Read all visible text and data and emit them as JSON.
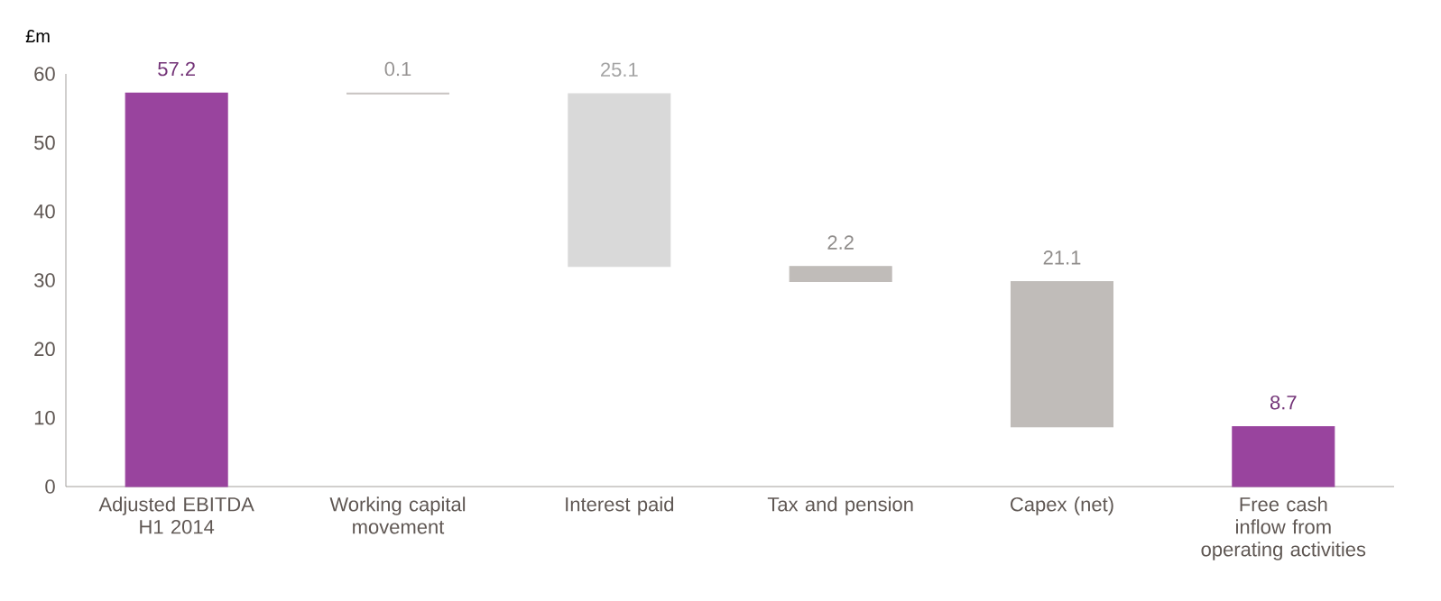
{
  "chart_data": {
    "type": "bar",
    "ylabel": "£m",
    "categories": [
      "Adjusted EBITDA H1 2014",
      "Working capital movement",
      "Interest paid",
      "Tax and pension",
      "Capex (net)",
      "Free cash inflow from operating activities"
    ],
    "values": [
      57.2,
      0.1,
      25.1,
      2.2,
      21.1,
      8.7
    ],
    "base": [
      0,
      57.1,
      32.0,
      29.8,
      8.7,
      0
    ],
    "colors": [
      "#99449e",
      "#c8c4c2",
      "#d9d9d9",
      "#c0bcb9",
      "#c0bcb9",
      "#99449e"
    ],
    "ylim": [
      0,
      60
    ],
    "yticks": [
      0,
      10,
      20,
      30,
      40,
      50,
      60
    ],
    "data_labels": true,
    "grid": false
  }
}
